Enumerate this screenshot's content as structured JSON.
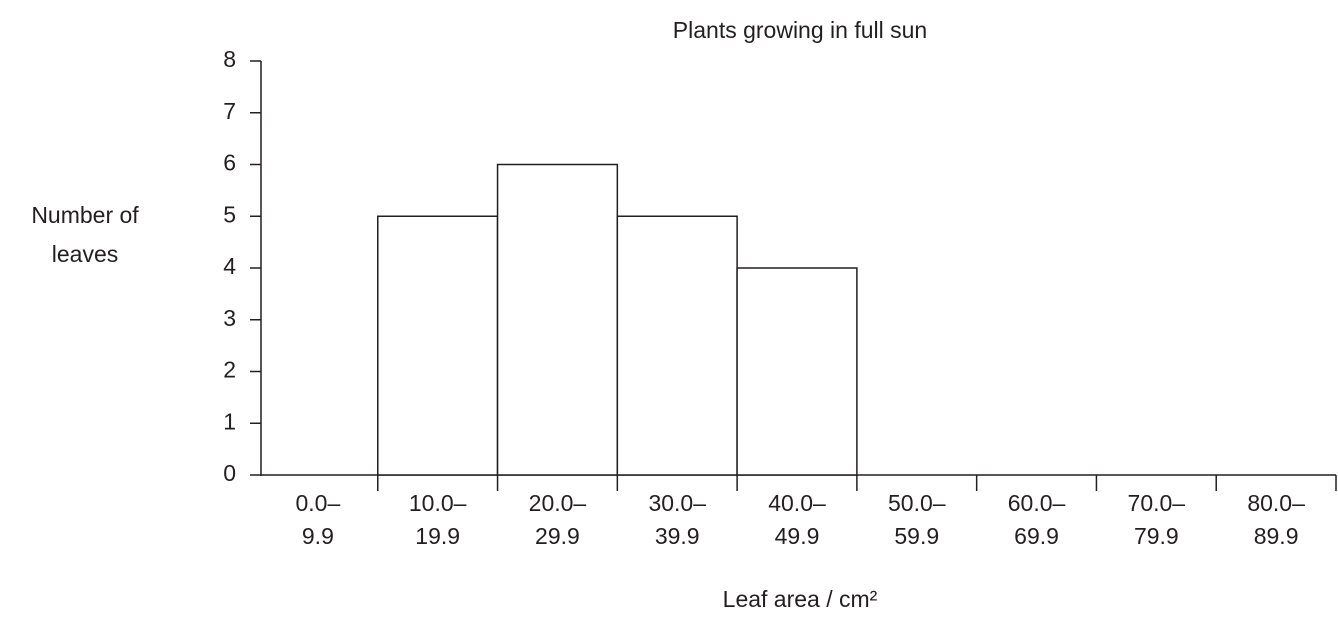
{
  "chart_data": {
    "type": "bar",
    "title": "Plants growing in full sun",
    "x_label": "Leaf area / cm²",
    "y_label": [
      "Number of",
      "leaves"
    ],
    "categories": [
      [
        "0.0–",
        "9.9"
      ],
      [
        "10.0–",
        "19.9"
      ],
      [
        "20.0–",
        "29.9"
      ],
      [
        "30.0–",
        "39.9"
      ],
      [
        "40.0–",
        "49.9"
      ],
      [
        "50.0–",
        "59.9"
      ],
      [
        "60.0–",
        "69.9"
      ],
      [
        "70.0–",
        "79.9"
      ],
      [
        "80.0–",
        "89.9"
      ]
    ],
    "values": [
      0,
      5,
      6,
      5,
      4,
      0,
      0,
      0,
      0
    ],
    "color": "#ffffff",
    "ylim": [
      0,
      8
    ],
    "yticks": [
      0,
      1,
      2,
      3,
      4,
      5,
      6,
      7,
      8
    ],
    "grid": false
  }
}
